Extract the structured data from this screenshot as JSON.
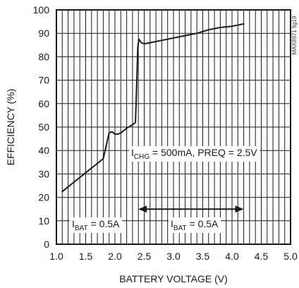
{
  "chart_data": {
    "type": "line",
    "title": "",
    "xlabel": "BATTERY VOLTAGE (V)",
    "ylabel": "EFFICIENCY (%)",
    "xlim": [
      1.0,
      5.0
    ],
    "ylim": [
      0,
      100
    ],
    "grid": true,
    "x_major_ticks": [
      1.0,
      1.5,
      2.0,
      2.5,
      3.0,
      3.5,
      4.0,
      4.5,
      5.0
    ],
    "x_tick_labels": [
      "1.0",
      "1.5",
      "2.0",
      "2.5",
      "3.0",
      "3.5",
      "4.0",
      "4.5",
      "5.0"
    ],
    "x_minor_step": 0.1,
    "y_major_ticks": [
      0,
      10,
      20,
      30,
      40,
      50,
      60,
      70,
      80,
      90,
      100
    ],
    "y_tick_labels": [
      "0",
      "10",
      "20",
      "30",
      "40",
      "50",
      "60",
      "70",
      "80",
      "90",
      "100"
    ],
    "series": [
      {
        "color": "#1a1a1a",
        "x": [
          1.1,
          1.2,
          1.3,
          1.4,
          1.5,
          1.6,
          1.7,
          1.8,
          1.85,
          1.9,
          1.95,
          2.0,
          2.05,
          2.1,
          2.2,
          2.3,
          2.35,
          2.37,
          2.39,
          2.41,
          2.45,
          2.5,
          2.6,
          2.8,
          3.0,
          3.2,
          3.4,
          3.6,
          3.8,
          4.0,
          4.2
        ],
        "y": [
          22.5,
          24.5,
          26.5,
          28.5,
          30.5,
          32.5,
          34.5,
          36.5,
          42,
          47.5,
          48,
          47,
          47,
          47.5,
          49.5,
          51,
          52,
          67,
          84,
          87.5,
          86,
          85.5,
          86,
          87,
          88,
          89,
          90,
          91.5,
          92.5,
          93,
          94
        ]
      }
    ],
    "annotations": [
      {
        "main": "I",
        "sub": "CHG",
        "rest": " = 500mA, PREQ = 2.5V"
      },
      {
        "main": "I",
        "sub": "BAT",
        "rest": " = 0.5A"
      },
      {
        "main": "I",
        "sub": "BAT",
        "rest": " = 0.5A"
      }
    ],
    "range_arrow": {
      "from": 2.4,
      "to": 4.2,
      "y": 15
    },
    "figure_id": "MAX8971 fig19"
  }
}
